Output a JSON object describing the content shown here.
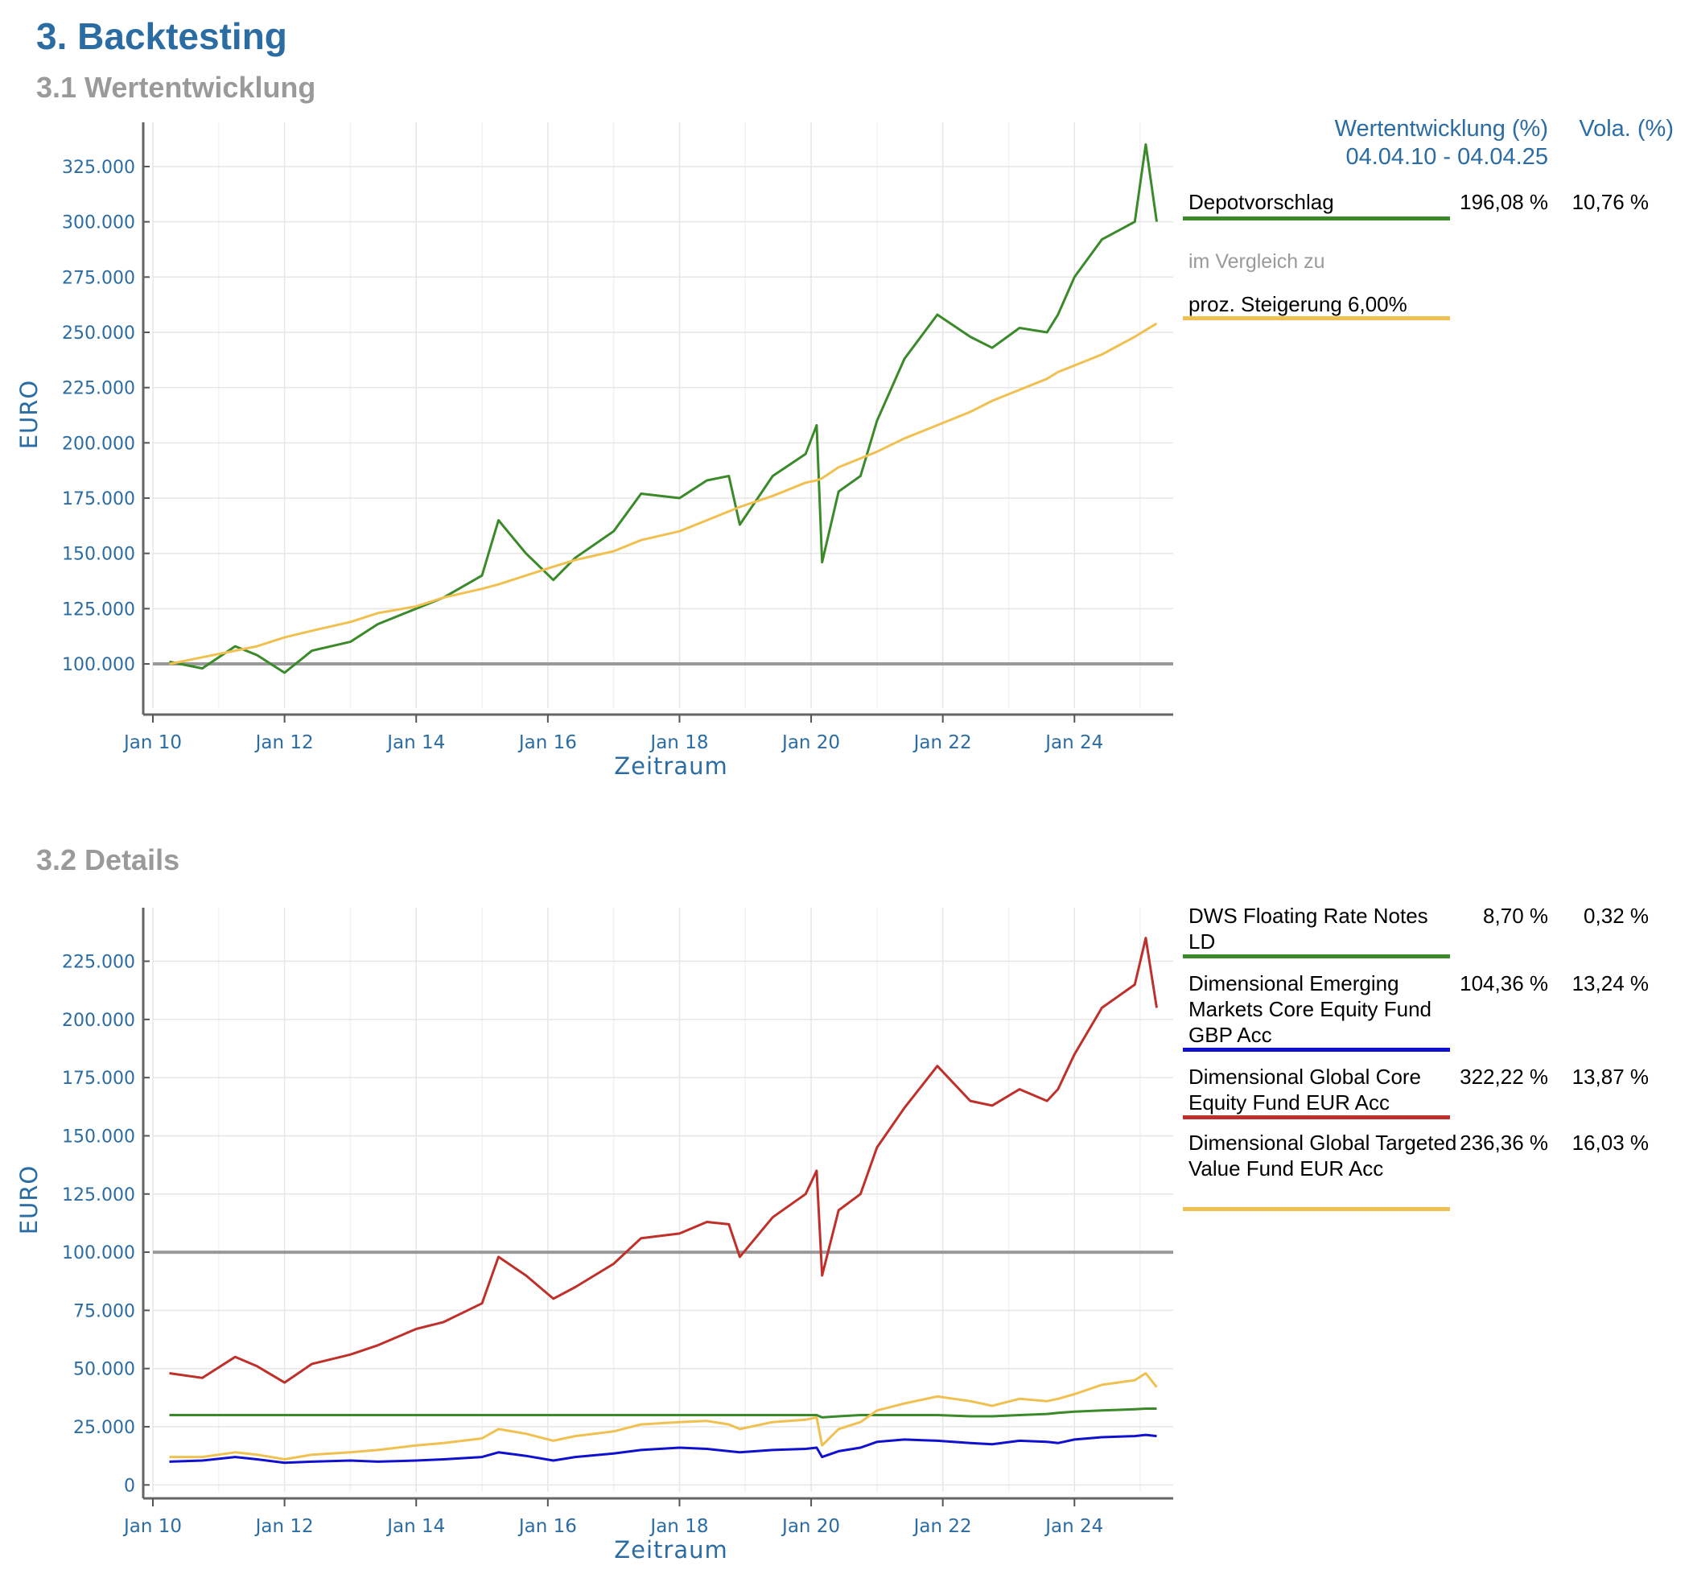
{
  "header": {
    "title": "3. Backtesting",
    "section1": "3.1 Wertentwicklung",
    "section2": "3.2 Details"
  },
  "legend": {
    "col_perf": "Wertentwicklung (%)",
    "col_period": "04.04.10 - 04.04.25",
    "col_vola": "Vola. (%)",
    "compare_note": "im Vergleich zu",
    "chart1_items": [
      {
        "name": "Depotvorschlag",
        "perf": "196,08 %",
        "vola": "10,76 %",
        "color": "#3a8a2a"
      },
      {
        "name": "proz. Steigerung 6,00%",
        "perf": "",
        "vola": "",
        "color": "#f0c050"
      }
    ],
    "chart2_items": [
      {
        "name": "DWS Floating Rate Notes LD",
        "perf": "8,70 %",
        "vola": "0,32 %",
        "color": "#3a8a2a"
      },
      {
        "name": "Dimensional Emerging Markets Core Equity Fund GBP Acc",
        "perf": "104,36 %",
        "vola": "13,24 %",
        "color": "#1010d0"
      },
      {
        "name": "Dimensional Global Core Equity Fund EUR Acc",
        "perf": "322,22 %",
        "vola": "13,87 %",
        "color": "#c0302a"
      },
      {
        "name": "Dimensional Global Targeted Value Fund EUR Acc",
        "perf": "236,36 %",
        "vola": "16,03 %",
        "color": "#f0c050"
      }
    ]
  },
  "chart_data": [
    {
      "type": "line",
      "xlabel": "Zeitraum",
      "ylabel": "EURO",
      "x_ticks": [
        "Jan 10",
        "Jan 12",
        "Jan 14",
        "Jan 16",
        "Jan 18",
        "Jan 20",
        "Jan 22",
        "Jan 24"
      ],
      "y_ticks": [
        "100.000",
        "125.000",
        "150.000",
        "175.000",
        "200.000",
        "225.000",
        "250.000",
        "275.000",
        "300.000",
        "325.000"
      ],
      "ylim": [
        80000,
        345000
      ],
      "xlim": [
        "2010-01-01",
        "2025-07-01"
      ],
      "grid": true,
      "reference_line": 100000,
      "x": [
        "2010-04",
        "2010-10",
        "2011-04",
        "2011-08",
        "2012-01",
        "2012-06",
        "2013-01",
        "2013-06",
        "2014-01",
        "2014-06",
        "2015-01",
        "2015-04",
        "2015-09",
        "2016-02",
        "2016-06",
        "2017-01",
        "2017-06",
        "2018-01",
        "2018-06",
        "2018-10",
        "2018-12",
        "2019-06",
        "2019-12",
        "2020-02",
        "2020-03",
        "2020-06",
        "2020-10",
        "2021-01",
        "2021-06",
        "2021-12",
        "2022-06",
        "2022-10",
        "2023-03",
        "2023-08",
        "2023-10",
        "2024-01",
        "2024-06",
        "2024-12",
        "2025-02",
        "2025-04"
      ],
      "series": [
        {
          "name": "Depotvorschlag",
          "color": "#3a8a2a",
          "values": [
            101000,
            98000,
            108000,
            104000,
            96000,
            106000,
            110000,
            118000,
            125000,
            130000,
            140000,
            165000,
            150000,
            138000,
            148000,
            160000,
            177000,
            175000,
            183000,
            185000,
            163000,
            185000,
            195000,
            208000,
            146000,
            178000,
            185000,
            210000,
            238000,
            258000,
            248000,
            243000,
            252000,
            250000,
            258000,
            275000,
            292000,
            300000,
            335000,
            300000
          ]
        },
        {
          "name": "proz. Steigerung 6,00%",
          "color": "#f0c050",
          "values": [
            100000,
            103000,
            106000,
            108000,
            112000,
            115000,
            119000,
            123000,
            126000,
            130000,
            134000,
            136000,
            140000,
            144000,
            147000,
            151000,
            156000,
            160000,
            165000,
            169000,
            171000,
            176000,
            182000,
            183000,
            184000,
            189000,
            193000,
            196000,
            202000,
            208000,
            214000,
            219000,
            224000,
            229000,
            232000,
            235000,
            240000,
            248000,
            251000,
            254000
          ]
        }
      ]
    },
    {
      "type": "line",
      "xlabel": "Zeitraum",
      "ylabel": "EURO",
      "x_ticks": [
        "Jan 10",
        "Jan 12",
        "Jan 14",
        "Jan 16",
        "Jan 18",
        "Jan 20",
        "Jan 22",
        "Jan 24"
      ],
      "y_ticks": [
        "0",
        "25.000",
        "50.000",
        "75.000",
        "100.000",
        "125.000",
        "150.000",
        "175.000",
        "200.000",
        "225.000"
      ],
      "ylim": [
        -3000,
        248000
      ],
      "xlim": [
        "2010-01-01",
        "2025-07-01"
      ],
      "grid": true,
      "reference_line": 100000,
      "x": [
        "2010-04",
        "2010-10",
        "2011-04",
        "2011-08",
        "2012-01",
        "2012-06",
        "2013-01",
        "2013-06",
        "2014-01",
        "2014-06",
        "2015-01",
        "2015-04",
        "2015-09",
        "2016-02",
        "2016-06",
        "2017-01",
        "2017-06",
        "2018-01",
        "2018-06",
        "2018-10",
        "2018-12",
        "2019-06",
        "2019-12",
        "2020-02",
        "2020-03",
        "2020-06",
        "2020-10",
        "2021-01",
        "2021-06",
        "2021-12",
        "2022-06",
        "2022-10",
        "2023-03",
        "2023-08",
        "2023-10",
        "2024-01",
        "2024-06",
        "2024-12",
        "2025-02",
        "2025-04"
      ],
      "series": [
        {
          "name": "DWS Floating Rate Notes LD",
          "color": "#3a8a2a",
          "values": [
            30000,
            30000,
            30000,
            30000,
            30000,
            30000,
            30000,
            30000,
            30000,
            30000,
            30000,
            30000,
            30000,
            30000,
            30000,
            30000,
            30000,
            30000,
            30000,
            30000,
            30000,
            30000,
            30000,
            30000,
            29000,
            29500,
            30000,
            30000,
            30000,
            30000,
            29500,
            29500,
            30000,
            30500,
            31000,
            31500,
            32000,
            32500,
            32800,
            32800
          ]
        },
        {
          "name": "Dimensional Emerging Markets Core Equity Fund GBP Acc",
          "color": "#1010d0",
          "values": [
            10000,
            10500,
            12000,
            11000,
            9500,
            10000,
            10500,
            10000,
            10500,
            11000,
            12000,
            14000,
            12500,
            10500,
            12000,
            13500,
            15000,
            16000,
            15500,
            14500,
            14000,
            15000,
            15500,
            16000,
            12000,
            14500,
            16000,
            18500,
            19500,
            19000,
            18000,
            17500,
            19000,
            18500,
            18000,
            19500,
            20500,
            21000,
            21500,
            21000
          ]
        },
        {
          "name": "Dimensional Global Core Equity Fund EUR Acc",
          "color": "#c0302a",
          "values": [
            48000,
            46000,
            55000,
            51000,
            44000,
            52000,
            56000,
            60000,
            67000,
            70000,
            78000,
            98000,
            90000,
            80000,
            85000,
            95000,
            106000,
            108000,
            113000,
            112000,
            98000,
            115000,
            125000,
            135000,
            90000,
            118000,
            125000,
            145000,
            162000,
            180000,
            165000,
            163000,
            170000,
            165000,
            170000,
            185000,
            205000,
            215000,
            235000,
            205000
          ]
        },
        {
          "name": "Dimensional Global Targeted Value Fund EUR Acc",
          "color": "#f0c050",
          "values": [
            12000,
            12000,
            14000,
            13000,
            11000,
            13000,
            14000,
            15000,
            17000,
            18000,
            20000,
            24000,
            22000,
            19000,
            21000,
            23000,
            26000,
            27000,
            27500,
            26000,
            24000,
            27000,
            28000,
            29000,
            17000,
            24000,
            27000,
            32000,
            35000,
            38000,
            36000,
            34000,
            37000,
            36000,
            37000,
            39000,
            43000,
            45000,
            48000,
            42000
          ]
        }
      ]
    }
  ]
}
